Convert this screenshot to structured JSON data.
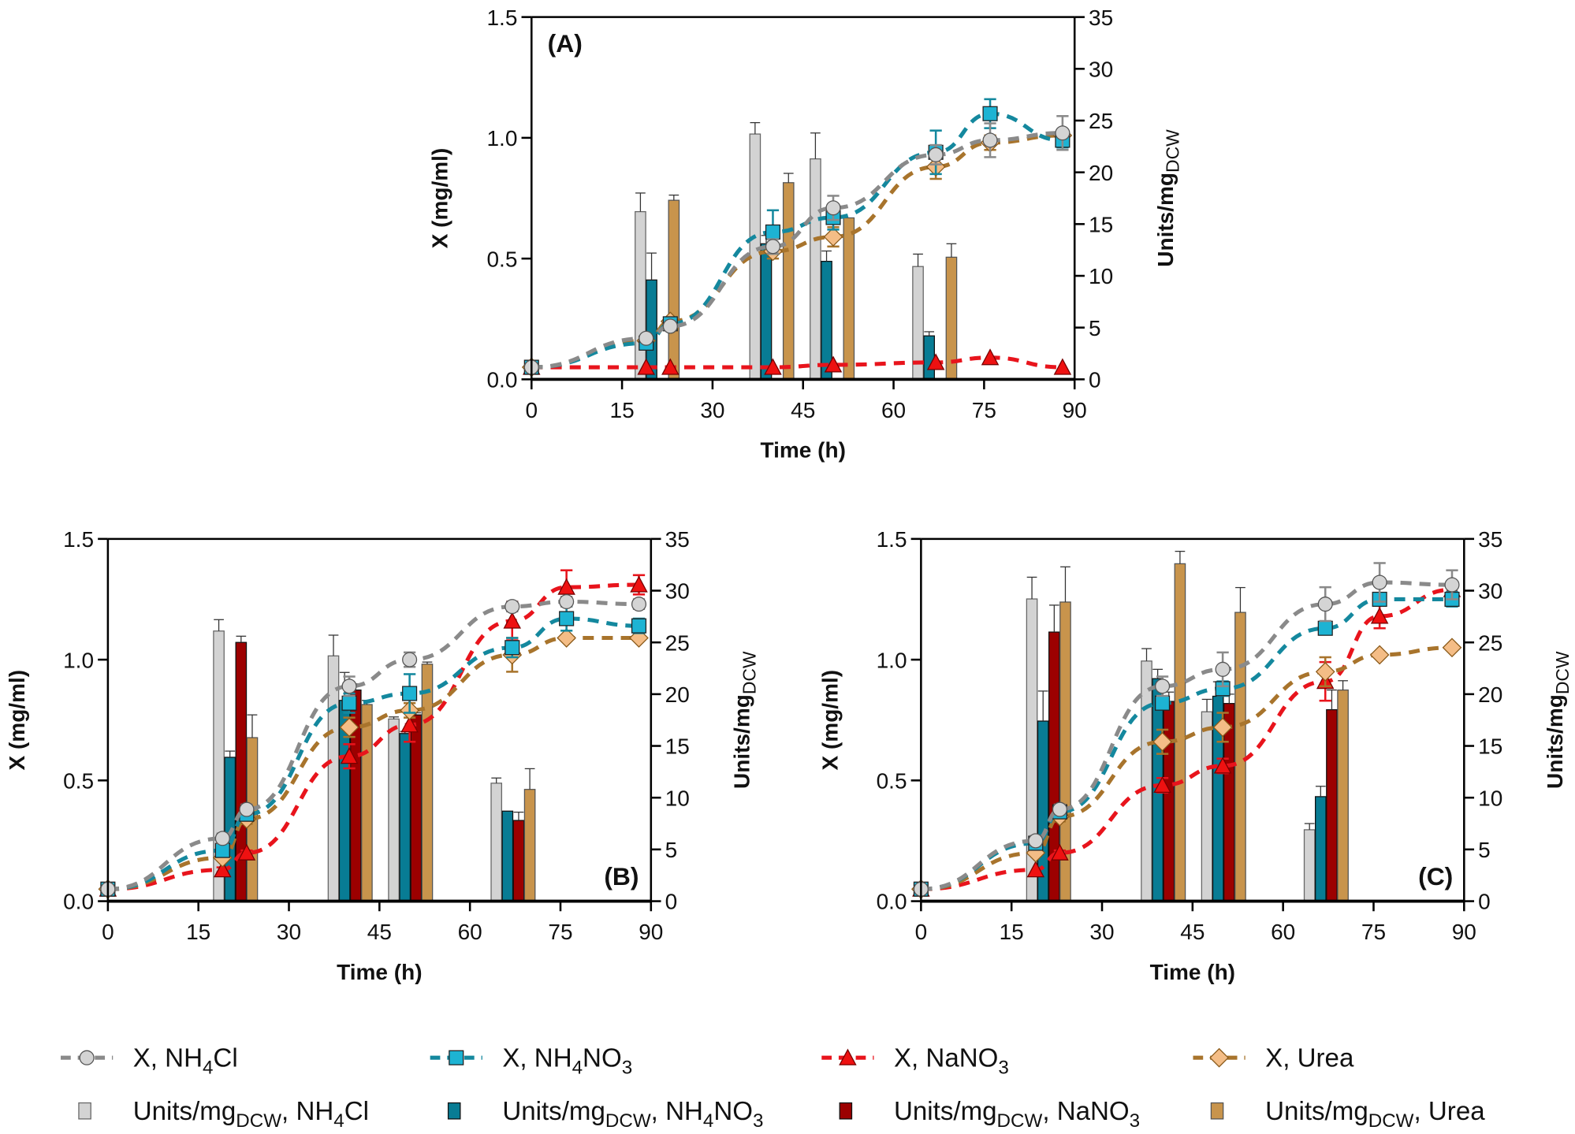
{
  "chart_data": {
    "type": "bar+line",
    "xlabel": "Time (h)",
    "ylabel_left": "X (mg/ml)",
    "ylabel_right": "Units/mg",
    "ylabel_right_sub": "DCW",
    "xlim": [
      0,
      90
    ],
    "xticks": [
      "0",
      "15",
      "30",
      "45",
      "60",
      "75",
      "90"
    ],
    "ylim_left": [
      0,
      1.5
    ],
    "yticks_left": [
      "0.0",
      "0.5",
      "1.0",
      "1.5"
    ],
    "ylim_right": [
      0,
      35
    ],
    "yticks_right": [
      "0",
      "5",
      "10",
      "15",
      "20",
      "25",
      "30",
      "35"
    ],
    "line_times": [
      0,
      19,
      23,
      40,
      50,
      67,
      76,
      88
    ],
    "bar_times": [
      21,
      40,
      50,
      67
    ],
    "series_meta": [
      {
        "key": "nh4cl",
        "line_name": "X, NH4Cl",
        "bar_name": "Units/mgDCW, NH4Cl",
        "line_color": "#8a8a8a",
        "marker": "circle",
        "marker_fill": "#d4d4d4",
        "bar_color": "#d3d3d3",
        "bar_edge": "#666666"
      },
      {
        "key": "nh4no3",
        "line_name": "X, NH4NO3",
        "bar_name": "Units/mgDCW, NH4NO3",
        "line_color": "#14889e",
        "marker": "square",
        "marker_fill": "#1db3d3",
        "bar_color": "#087c94",
        "bar_edge": "#111111"
      },
      {
        "key": "nano3",
        "line_name": "X, NaNO3",
        "bar_name": "Units/mgDCW, NaNO3",
        "line_color": "#e8141c",
        "marker": "triangle",
        "marker_fill": "#ee1111",
        "bar_color": "#9c0000",
        "bar_edge": "#111111"
      },
      {
        "key": "urea",
        "line_name": "X, Urea",
        "bar_name": "Units/mgDCW, Urea",
        "line_color": "#a8742c",
        "marker": "diamond",
        "marker_fill": "#f4bd86",
        "bar_color": "#c8944c",
        "bar_edge": "#555555"
      }
    ],
    "panels": [
      {
        "label": "(A)",
        "X": {
          "nh4cl": [
            0.05,
            0.17,
            0.22,
            0.55,
            0.71,
            0.93,
            0.99,
            1.02
          ],
          "nh4no3": [
            0.05,
            0.15,
            0.23,
            0.61,
            0.67,
            0.94,
            1.1,
            0.99
          ],
          "nano3": [
            0.05,
            0.05,
            0.05,
            0.05,
            0.06,
            0.07,
            0.09,
            0.05
          ],
          "urea": [
            0.05,
            0.16,
            0.24,
            0.53,
            0.59,
            0.88,
            0.98,
            1.01
          ]
        },
        "X_err": {
          "nh4cl": [
            0.01,
            0.01,
            0.01,
            0.03,
            0.05,
            0.04,
            0.07,
            0.07
          ],
          "nh4no3": [
            0.01,
            0.01,
            0.01,
            0.09,
            0.05,
            0.09,
            0.06,
            0.03
          ],
          "nano3": [
            0.0,
            0.0,
            0.0,
            0.0,
            0.0,
            0.0,
            0.0,
            0.0
          ],
          "urea": [
            0.01,
            0.01,
            0.01,
            0.03,
            0.04,
            0.05,
            0.03,
            0.02
          ]
        },
        "units": {
          "nh4cl": [
            16.2,
            23.7,
            21.3,
            10.9
          ],
          "nh4no3": [
            9.6,
            13.1,
            11.4,
            4.2
          ],
          "nano3": [
            null,
            null,
            null,
            null
          ],
          "urea": [
            17.3,
            19.0,
            15.6,
            11.8
          ]
        },
        "units_err": {
          "nh4cl": [
            1.8,
            1.1,
            2.5,
            1.2
          ],
          "nh4no3": [
            2.6,
            0.8,
            1.0,
            0.4
          ],
          "nano3": [
            null,
            null,
            null,
            null
          ],
          "urea": [
            0.5,
            0.9,
            0.0,
            1.3
          ]
        }
      },
      {
        "label": "(B)",
        "X": {
          "nh4cl": [
            0.05,
            0.26,
            0.38,
            0.89,
            1.0,
            1.22,
            1.24,
            1.23
          ],
          "nh4no3": [
            0.05,
            0.21,
            0.36,
            0.82,
            0.86,
            1.05,
            1.17,
            1.14
          ],
          "nano3": [
            0.05,
            0.13,
            0.2,
            0.6,
            0.73,
            1.16,
            1.3,
            1.31
          ],
          "urea": [
            0.05,
            0.18,
            0.34,
            0.72,
            0.79,
            1.02,
            1.09,
            1.09
          ]
        },
        "X_err": {
          "nh4cl": [
            0.01,
            0.02,
            0.02,
            0.04,
            0.03,
            0.02,
            0.02,
            0.02
          ],
          "nh4no3": [
            0.01,
            0.02,
            0.02,
            0.04,
            0.08,
            0.04,
            0.05,
            0.03
          ],
          "nano3": [
            0.0,
            0.01,
            0.01,
            0.05,
            0.07,
            0.08,
            0.07,
            0.04
          ],
          "urea": [
            0.01,
            0.01,
            0.02,
            0.04,
            0.03,
            0.07,
            0.0,
            0.0
          ]
        },
        "units": {
          "nh4cl": [
            26.1,
            23.7,
            17.6,
            11.4
          ],
          "nh4no3": [
            13.9,
            19.4,
            16.2,
            8.7
          ],
          "nano3": [
            25.0,
            20.4,
            18.0,
            7.8
          ],
          "urea": [
            15.8,
            19.0,
            22.9,
            10.8
          ]
        },
        "units_err": {
          "nh4cl": [
            1.1,
            2.0,
            0.2,
            0.5
          ],
          "nh4no3": [
            0.6,
            2.7,
            0.2,
            0.0
          ],
          "nano3": [
            0.6,
            0.6,
            0.2,
            0.8
          ],
          "urea": [
            2.2,
            0.4,
            0.2,
            2.0
          ]
        }
      },
      {
        "label": "(C)",
        "X": {
          "nh4cl": [
            0.05,
            0.25,
            0.38,
            0.89,
            0.96,
            1.23,
            1.32,
            1.31
          ],
          "nh4no3": [
            0.05,
            0.24,
            0.37,
            0.82,
            0.88,
            1.13,
            1.25,
            1.25
          ],
          "nano3": [
            0.05,
            0.13,
            0.2,
            0.48,
            0.56,
            0.91,
            1.18,
            1.29
          ],
          "urea": [
            0.05,
            0.2,
            0.35,
            0.66,
            0.72,
            0.95,
            1.02,
            1.05
          ]
        },
        "X_err": {
          "nh4cl": [
            0.01,
            0.02,
            0.02,
            0.04,
            0.07,
            0.07,
            0.08,
            0.06
          ],
          "nh4no3": [
            0.01,
            0.02,
            0.02,
            0.02,
            0.03,
            0.02,
            0.02,
            0.03
          ],
          "nano3": [
            0.0,
            0.0,
            0.01,
            0.03,
            0.03,
            0.08,
            0.05,
            0.03
          ],
          "urea": [
            0.01,
            0.01,
            0.02,
            0.05,
            0.06,
            0.06,
            0.0,
            0.0
          ]
        },
        "units": {
          "nh4cl": [
            29.2,
            23.2,
            18.3,
            6.9
          ],
          "nh4no3": [
            17.4,
            21.5,
            19.8,
            10.1
          ],
          "nano3": [
            26.0,
            19.3,
            19.1,
            18.5
          ],
          "urea": [
            28.9,
            32.6,
            27.9,
            20.4
          ]
        },
        "units_err": {
          "nh4cl": [
            2.1,
            1.2,
            1.2,
            0.6
          ],
          "nh4no3": [
            2.9,
            0.9,
            1.4,
            1.0
          ],
          "nano3": [
            2.6,
            0.9,
            0.9,
            1.9
          ],
          "urea": [
            3.4,
            1.2,
            2.4,
            0.9
          ]
        }
      }
    ]
  },
  "legend": {
    "items": [
      {
        "kind": "line",
        "key": "nh4cl",
        "prefix": "X, NH",
        "sub1": "4",
        "mid": "Cl",
        "sub2": "",
        "suffix": ""
      },
      {
        "kind": "line",
        "key": "nh4no3",
        "prefix": "X, NH",
        "sub1": "4",
        "mid": "NO",
        "sub2": "3",
        "suffix": ""
      },
      {
        "kind": "line",
        "key": "nano3",
        "prefix": "X, NaNO",
        "sub1": "3",
        "mid": "",
        "sub2": "",
        "suffix": ""
      },
      {
        "kind": "line",
        "key": "urea",
        "prefix": "X, Urea",
        "sub1": "",
        "mid": "",
        "sub2": "",
        "suffix": ""
      },
      {
        "kind": "bar",
        "key": "nh4cl",
        "prefix": "Units/mg",
        "sub1": "DCW",
        "mid": ", NH",
        "sub2": "4",
        "suffix": "Cl"
      },
      {
        "kind": "bar",
        "key": "nh4no3",
        "prefix": "Units/mg",
        "sub1": "DCW",
        "mid": ", NH",
        "sub2": "4",
        "suffix": "NO",
        "sub3": "3"
      },
      {
        "kind": "bar",
        "key": "nano3",
        "prefix": "Units/mg",
        "sub1": "DCW",
        "mid": ", NaNO",
        "sub2": "3",
        "suffix": ""
      },
      {
        "kind": "bar",
        "key": "urea",
        "prefix": "Units/mg",
        "sub1": "DCW",
        "mid": ", Urea",
        "sub2": "",
        "suffix": ""
      }
    ]
  }
}
